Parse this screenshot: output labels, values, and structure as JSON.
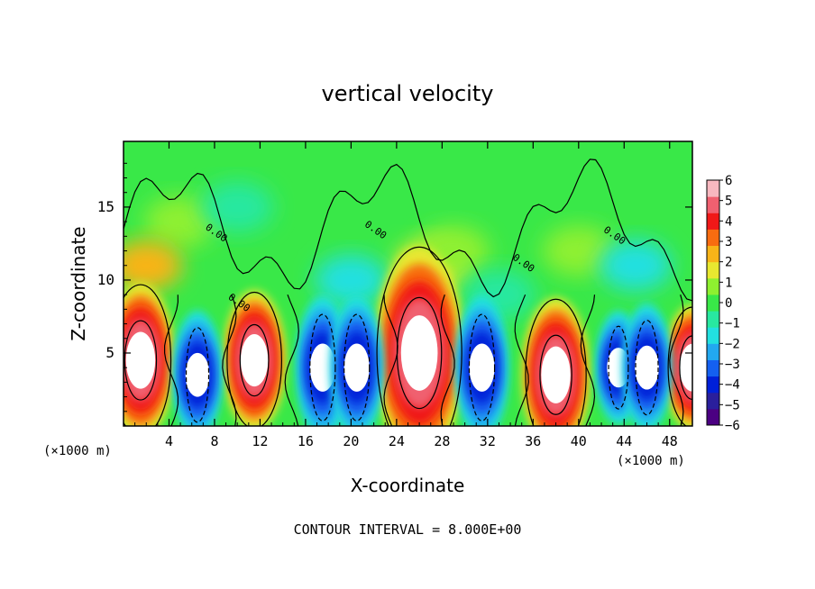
{
  "chart_data": {
    "type": "heatmap",
    "title": "vertical velocity",
    "xlabel": "X-coordinate",
    "ylabel": "Z-coordinate",
    "x_unit_left": "(×1000 m)",
    "x_unit_right": "(×1000 m)",
    "footer": "CONTOUR INTERVAL = 8.000E+00",
    "xlim": [
      0,
      50
    ],
    "ylim": [
      0,
      19.5
    ],
    "x_ticks": [
      "4",
      "8",
      "12",
      "16",
      "20",
      "24",
      "28",
      "32",
      "36",
      "40",
      "44",
      "48"
    ],
    "y_ticks": [
      "5",
      "10",
      "15"
    ],
    "colorbar": {
      "labels": [
        "6",
        "5",
        "4",
        "3",
        "2",
        "1",
        "0",
        "−1",
        "−2",
        "−3",
        "−4",
        "−5",
        "−6"
      ],
      "range": [
        -6,
        6
      ],
      "colors": [
        "#4b0082",
        "#2a1f9c",
        "#0020d8",
        "#1460f0",
        "#22a8f0",
        "#22e0e0",
        "#28e8a0",
        "#39e848",
        "#8ef030",
        "#e8e830",
        "#f8b418",
        "#f86c10",
        "#f01818",
        "#f06070",
        "#f8b8c0"
      ]
    },
    "contour_labels": [
      "0.00",
      "0.00",
      "0.00",
      "0.00",
      "0.00"
    ],
    "updrafts": [
      {
        "x": 1.5,
        "z": 4.5,
        "w": 10
      },
      {
        "x": 11.5,
        "z": 4.5,
        "w": 9
      },
      {
        "x": 26.0,
        "z": 5.0,
        "w": 14
      },
      {
        "x": 38.0,
        "z": 3.5,
        "w": 10
      },
      {
        "x": 50.0,
        "z": 4.0,
        "w": 8
      }
    ],
    "downdrafts": [
      {
        "x": 6.5,
        "z": 3.5,
        "w": -8
      },
      {
        "x": 17.5,
        "z": 4.0,
        "w": -9
      },
      {
        "x": 20.5,
        "z": 4.0,
        "w": -9
      },
      {
        "x": 31.5,
        "z": 4.0,
        "w": -9
      },
      {
        "x": 43.5,
        "z": 4.0,
        "w": -7
      },
      {
        "x": 46.0,
        "z": 4.0,
        "w": -8
      }
    ]
  }
}
